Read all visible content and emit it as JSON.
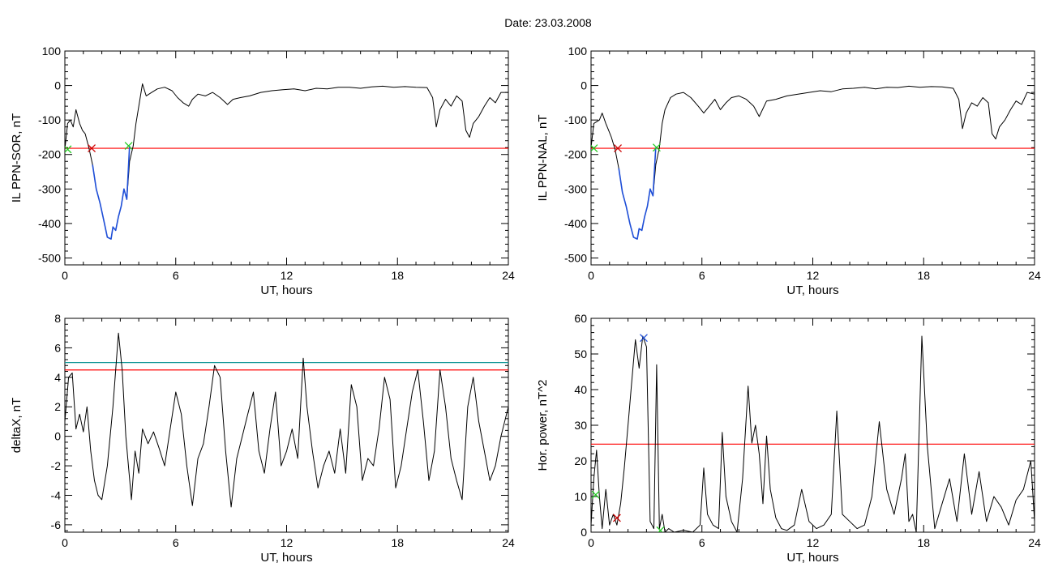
{
  "figure": {
    "title": "Date:  23.03.2008"
  },
  "chart_data": [
    {
      "type": "line",
      "ylabel": "IL PPN-SOR, nT",
      "xlabel": "UT, hours",
      "xlim": [
        0,
        24
      ],
      "ylim": [
        -520,
        100
      ],
      "xticks": [
        0,
        6,
        12,
        18,
        24
      ],
      "yticks": [
        100,
        0,
        -100,
        -200,
        -300,
        -400,
        -500
      ],
      "grid": false,
      "series": [
        {
          "color": "#000000",
          "x": [
            0,
            0.15,
            0.3,
            0.45,
            0.6,
            0.8,
            0.95,
            1.1,
            1.3,
            1.5,
            1.7,
            1.9,
            2.1,
            2.3,
            2.5,
            2.6,
            2.75,
            2.9,
            3.05,
            3.2,
            3.35,
            3.5,
            3.7,
            3.85,
            4.0,
            4.2,
            4.4,
            4.7,
            5.0,
            5.4,
            5.8,
            6.1,
            6.4,
            6.7,
            6.9,
            7.2,
            7.6,
            8.0,
            8.4,
            8.8,
            9.1,
            9.5,
            10.0,
            10.6,
            11.2,
            11.8,
            12.4,
            13.0,
            13.6,
            14.2,
            14.8,
            15.4,
            16.0,
            16.6,
            17.2,
            17.8,
            18.4,
            19.0,
            19.6,
            19.9,
            20.1,
            20.3,
            20.6,
            20.9,
            21.2,
            21.5,
            21.7,
            21.9,
            22.1,
            22.4,
            22.7,
            23.0,
            23.3,
            23.6,
            24
          ],
          "y": [
            -185,
            -110,
            -100,
            -120,
            -70,
            -110,
            -130,
            -140,
            -180,
            -230,
            -300,
            -340,
            -390,
            -440,
            -445,
            -410,
            -420,
            -380,
            -350,
            -300,
            -330,
            -220,
            -175,
            -110,
            -60,
            5,
            -30,
            -20,
            -10,
            -5,
            -15,
            -35,
            -50,
            -60,
            -40,
            -25,
            -30,
            -20,
            -35,
            -55,
            -40,
            -35,
            -30,
            -20,
            -15,
            -12,
            -10,
            -15,
            -8,
            -10,
            -5,
            -5,
            -8,
            -4,
            -2,
            -5,
            -3,
            -5,
            -6,
            -35,
            -120,
            -70,
            -40,
            -60,
            -30,
            -45,
            -130,
            -150,
            -110,
            -90,
            -60,
            -35,
            -50,
            -20,
            -20
          ]
        }
      ],
      "highlight": {
        "color": "#1f4fd8",
        "x": [
          1.5,
          1.7,
          1.9,
          2.1,
          2.3,
          2.5,
          2.6,
          2.75,
          2.9,
          3.05,
          3.2,
          3.35,
          3.5
        ],
        "y": [
          -230,
          -300,
          -340,
          -390,
          -440,
          -445,
          -410,
          -420,
          -380,
          -350,
          -300,
          -330,
          -175
        ]
      },
      "hlines": [
        {
          "y": -182,
          "color": "#ff0000"
        }
      ],
      "markers": [
        {
          "x": 0.15,
          "y": -185,
          "color": "#22cc22"
        },
        {
          "x": 1.45,
          "y": -182,
          "color": "#cc0000"
        },
        {
          "x": 3.45,
          "y": -175,
          "color": "#22cc22"
        }
      ]
    },
    {
      "type": "line",
      "ylabel": "IL PPN-NAL, nT",
      "xlabel": "UT, hours",
      "xlim": [
        0,
        24
      ],
      "ylim": [
        -520,
        100
      ],
      "xticks": [
        0,
        6,
        12,
        18,
        24
      ],
      "yticks": [
        100,
        0,
        -100,
        -200,
        -300,
        -400,
        -500
      ],
      "grid": false,
      "series": [
        {
          "color": "#000000",
          "x": [
            0,
            0.15,
            0.3,
            0.45,
            0.6,
            0.8,
            0.95,
            1.1,
            1.3,
            1.5,
            1.7,
            1.9,
            2.1,
            2.3,
            2.5,
            2.6,
            2.75,
            2.9,
            3.05,
            3.2,
            3.35,
            3.5,
            3.7,
            3.85,
            4.0,
            4.3,
            4.6,
            5.0,
            5.4,
            5.8,
            6.1,
            6.4,
            6.7,
            7.0,
            7.3,
            7.6,
            8.0,
            8.4,
            8.8,
            9.1,
            9.5,
            10.0,
            10.6,
            11.2,
            11.8,
            12.4,
            13.0,
            13.6,
            14.2,
            14.8,
            15.4,
            16.0,
            16.6,
            17.2,
            17.8,
            18.4,
            19.0,
            19.6,
            19.9,
            20.1,
            20.3,
            20.6,
            20.9,
            21.2,
            21.5,
            21.7,
            21.9,
            22.1,
            22.4,
            22.7,
            23.0,
            23.3,
            23.6,
            24
          ],
          "y": [
            -180,
            -110,
            -105,
            -100,
            -80,
            -110,
            -130,
            -150,
            -185,
            -240,
            -310,
            -350,
            -400,
            -440,
            -445,
            -415,
            -420,
            -380,
            -350,
            -300,
            -320,
            -230,
            -180,
            -110,
            -70,
            -35,
            -25,
            -20,
            -35,
            -60,
            -80,
            -60,
            -40,
            -70,
            -50,
            -35,
            -30,
            -40,
            -60,
            -90,
            -45,
            -40,
            -30,
            -25,
            -20,
            -15,
            -18,
            -10,
            -8,
            -5,
            -10,
            -5,
            -6,
            -2,
            -5,
            -3,
            -4,
            -8,
            -40,
            -125,
            -80,
            -50,
            -60,
            -35,
            -50,
            -140,
            -155,
            -120,
            -100,
            -70,
            -45,
            -55,
            -20,
            -25
          ]
        }
      ],
      "highlight": {
        "color": "#1f4fd8",
        "x": [
          1.5,
          1.7,
          1.9,
          2.1,
          2.3,
          2.5,
          2.6,
          2.75,
          2.9,
          3.05,
          3.2,
          3.35,
          3.5
        ],
        "y": [
          -240,
          -310,
          -350,
          -400,
          -440,
          -445,
          -415,
          -420,
          -380,
          -350,
          -300,
          -320,
          -180
        ]
      },
      "hlines": [
        {
          "y": -182,
          "color": "#ff0000"
        }
      ],
      "markers": [
        {
          "x": 0.15,
          "y": -182,
          "color": "#22cc22"
        },
        {
          "x": 1.45,
          "y": -182,
          "color": "#cc0000"
        },
        {
          "x": 3.55,
          "y": -180,
          "color": "#22cc22"
        }
      ]
    },
    {
      "type": "line",
      "ylabel": "deltaX, nT",
      "xlabel": "UT, hours",
      "xlim": [
        0,
        24
      ],
      "ylim": [
        -6.5,
        8
      ],
      "xticks": [
        0,
        6,
        12,
        18,
        24
      ],
      "yticks": [
        8,
        6,
        4,
        2,
        0,
        -2,
        -4,
        -6
      ],
      "grid": false,
      "series": [
        {
          "color": "#000000",
          "x": [
            0,
            0.2,
            0.4,
            0.6,
            0.8,
            1.0,
            1.2,
            1.4,
            1.6,
            1.8,
            2.0,
            2.3,
            2.6,
            2.9,
            3.1,
            3.3,
            3.6,
            3.8,
            4.0,
            4.2,
            4.5,
            4.8,
            5.1,
            5.4,
            5.7,
            6.0,
            6.3,
            6.6,
            6.9,
            7.2,
            7.5,
            7.8,
            8.1,
            8.4,
            8.7,
            9.0,
            9.3,
            9.6,
            9.9,
            10.2,
            10.5,
            10.8,
            11.1,
            11.4,
            11.7,
            12.0,
            12.3,
            12.6,
            12.9,
            13.1,
            13.4,
            13.7,
            14.0,
            14.3,
            14.6,
            14.9,
            15.2,
            15.5,
            15.8,
            16.1,
            16.4,
            16.7,
            17.0,
            17.3,
            17.6,
            17.9,
            18.2,
            18.5,
            18.8,
            19.1,
            19.4,
            19.7,
            20.0,
            20.3,
            20.6,
            20.9,
            21.2,
            21.5,
            21.8,
            22.1,
            22.4,
            22.7,
            23.0,
            23.3,
            23.6,
            24
          ],
          "y": [
            1.0,
            4.0,
            4.3,
            0.5,
            1.5,
            0.3,
            2.0,
            -1.0,
            -3.0,
            -4.0,
            -4.3,
            -2.0,
            2.0,
            7.0,
            4.5,
            0.0,
            -4.3,
            -1.0,
            -2.5,
            0.5,
            -0.5,
            0.3,
            -0.8,
            -2.0,
            0.5,
            3.0,
            1.5,
            -2.0,
            -4.7,
            -1.5,
            -0.5,
            2.0,
            4.8,
            4.0,
            -1.0,
            -4.8,
            -1.5,
            0.0,
            1.5,
            3.0,
            -1.0,
            -2.5,
            0.5,
            3.0,
            -2.0,
            -1.0,
            0.5,
            -1.5,
            5.3,
            2.0,
            -1.0,
            -3.5,
            -2.0,
            -1.0,
            -2.5,
            0.5,
            -2.5,
            3.5,
            2.0,
            -3.0,
            -1.5,
            -2.0,
            0.5,
            4.0,
            2.5,
            -3.5,
            -2.0,
            0.5,
            3.0,
            4.5,
            1.0,
            -3.0,
            -1.0,
            4.5,
            2.0,
            -1.5,
            -3.0,
            -4.3,
            2.0,
            4.0,
            1.0,
            -1.0,
            -3.0,
            -2.0,
            0.0,
            2.0
          ]
        }
      ],
      "hlines": [
        {
          "y": 5.0,
          "color": "#1a9a9a"
        },
        {
          "y": 4.5,
          "color": "#ff0000"
        }
      ],
      "markers": []
    },
    {
      "type": "line",
      "ylabel": "Hor. power, nT^2",
      "xlabel": "UT, hours",
      "xlim": [
        0,
        24
      ],
      "ylim": [
        0,
        60
      ],
      "xticks": [
        0,
        6,
        12,
        18,
        24
      ],
      "yticks": [
        60,
        50,
        40,
        30,
        20,
        10,
        0
      ],
      "grid": false,
      "series": [
        {
          "color": "#000000",
          "x": [
            0,
            0.15,
            0.3,
            0.45,
            0.6,
            0.8,
            1.0,
            1.2,
            1.4,
            1.6,
            1.8,
            2.0,
            2.2,
            2.4,
            2.6,
            2.8,
            3.0,
            3.2,
            3.4,
            3.55,
            3.7,
            3.85,
            4.0,
            4.2,
            4.5,
            5.0,
            5.5,
            5.9,
            6.1,
            6.3,
            6.6,
            6.9,
            7.1,
            7.3,
            7.6,
            7.9,
            8.2,
            8.5,
            8.7,
            8.9,
            9.1,
            9.3,
            9.5,
            9.7,
            10.0,
            10.3,
            10.6,
            11.0,
            11.4,
            11.8,
            12.2,
            12.6,
            13.0,
            13.3,
            13.6,
            14.0,
            14.4,
            14.8,
            15.2,
            15.6,
            16.0,
            16.4,
            16.8,
            17.0,
            17.2,
            17.4,
            17.6,
            17.9,
            18.2,
            18.6,
            19.0,
            19.4,
            19.8,
            20.2,
            20.6,
            21.0,
            21.4,
            21.8,
            22.2,
            22.6,
            23.0,
            23.4,
            23.8,
            24
          ],
          "y": [
            2,
            15,
            23,
            10,
            1,
            12,
            2,
            5,
            2,
            8,
            18,
            30,
            42,
            54,
            46,
            55,
            52,
            3,
            1,
            47,
            1,
            5,
            0,
            1,
            0,
            0.5,
            0,
            2,
            18,
            5,
            2,
            1,
            28,
            10,
            3,
            0,
            15,
            41,
            25,
            30,
            22,
            8,
            27,
            12,
            4,
            1,
            0.5,
            2,
            12,
            3,
            1,
            2,
            5,
            34,
            5,
            3,
            1,
            2,
            10,
            31,
            12,
            5,
            15,
            22,
            3,
            5,
            0,
            55,
            24,
            1,
            8,
            15,
            3,
            22,
            5,
            17,
            3,
            10,
            7,
            2,
            9,
            12,
            20,
            3
          ]
        }
      ],
      "hlines": [
        {
          "y": 24.7,
          "color": "#ff0000"
        }
      ],
      "markers": [
        {
          "x": 2.85,
          "y": 54.5,
          "color": "#1f4fd8"
        },
        {
          "x": 0.25,
          "y": 10.5,
          "color": "#22cc22"
        },
        {
          "x": 1.4,
          "y": 4.0,
          "color": "#cc0000"
        },
        {
          "x": 3.75,
          "y": 0.5,
          "color": "#22cc22"
        }
      ]
    }
  ]
}
